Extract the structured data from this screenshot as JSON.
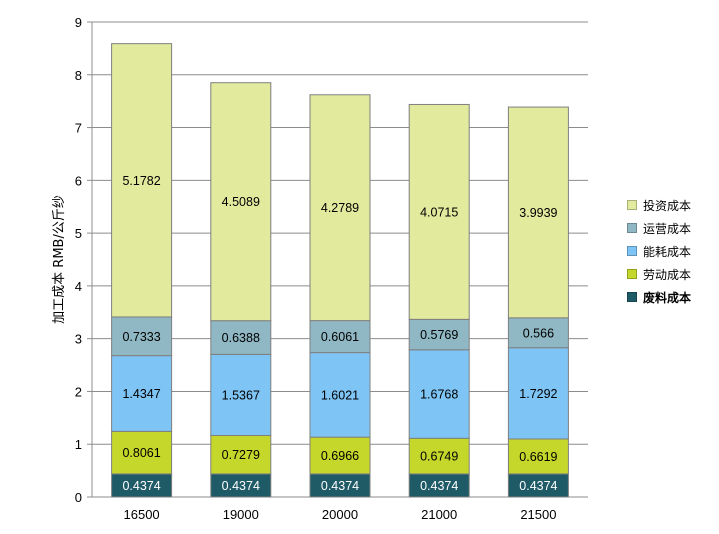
{
  "chart_data": {
    "type": "bar",
    "stacked": true,
    "title": "",
    "xlabel": "",
    "ylabel": "加工成本 RMB/公斤纱",
    "ylim": [
      0,
      9
    ],
    "yticks": [
      0,
      1,
      2,
      3,
      4,
      5,
      6,
      7,
      8,
      9
    ],
    "grid": true,
    "legend_position": "right",
    "categories": [
      "16500",
      "19000",
      "20000",
      "21000",
      "21500"
    ],
    "series": [
      {
        "name": "废料成本",
        "color": "#1f5a67",
        "label_color": "#ffffff",
        "values": [
          0.4374,
          0.4374,
          0.4374,
          0.4374,
          0.4374
        ],
        "labels": [
          "0.4374",
          "0.4374",
          "0.4374",
          "0.4374",
          "0.4374"
        ]
      },
      {
        "name": "劳动成本",
        "color": "#c5d72a",
        "label_color": "#000000",
        "values": [
          0.8061,
          0.7279,
          0.6966,
          0.6749,
          0.6619
        ],
        "labels": [
          "0.8061",
          "0.7279",
          "0.6966",
          "0.6749",
          "0.6619"
        ]
      },
      {
        "name": "能耗成本",
        "color": "#7ec4f5",
        "label_color": "#000000",
        "values": [
          1.4347,
          1.5367,
          1.6021,
          1.6768,
          1.7292
        ],
        "labels": [
          "1.4347",
          "1.5367",
          "1.6021",
          "1.6768",
          "1.7292"
        ]
      },
      {
        "name": "运营成本",
        "color": "#8fb8c4",
        "label_color": "#000000",
        "values": [
          0.7333,
          0.6388,
          0.6061,
          0.5769,
          0.566
        ],
        "labels": [
          "0.7333",
          "0.6388",
          "0.6061",
          "0.5769",
          "0.566"
        ]
      },
      {
        "name": "投资成本",
        "color": "#e2ea9e",
        "label_color": "#000000",
        "values": [
          5.1782,
          4.5089,
          4.2789,
          4.0715,
          3.9939
        ],
        "labels": [
          "5.1782",
          "4.5089",
          "4.2789",
          "4.0715",
          "3.9939"
        ]
      }
    ],
    "legend_order": [
      "投资成本",
      "运营成本",
      "能耗成本",
      "劳动成本",
      "废料成本"
    ]
  }
}
